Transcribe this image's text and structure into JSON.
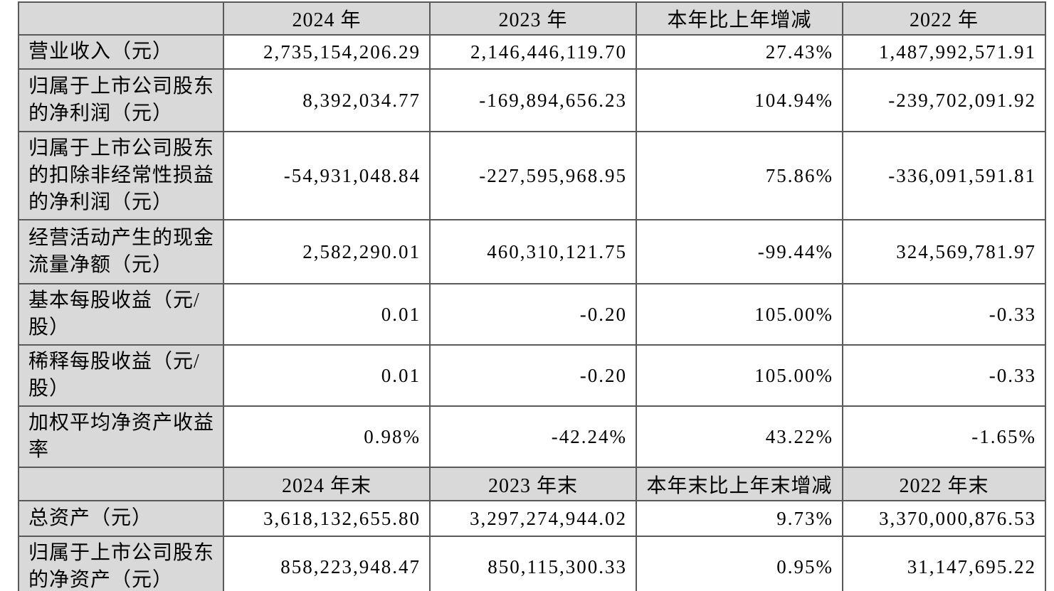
{
  "document": {
    "background_color": "#ffffff",
    "header_fill_color": "#d9d9d9",
    "border_color": "#595959",
    "text_color": "#000000"
  },
  "section1": {
    "header": [
      "",
      "2024 年",
      "2023 年",
      "本年比上年增减",
      "2022 年"
    ],
    "rows": [
      {
        "label": "营业收入（元）",
        "y2024": "2,735,154,206.29",
        "y2023": "2,146,446,119.70",
        "change": "27.43%",
        "y2022": "1,487,992,571.91"
      },
      {
        "label": "归属于上市公司股东的净利润（元）",
        "y2024": "8,392,034.77",
        "y2023": "-169,894,656.23",
        "change": "104.94%",
        "y2022": "-239,702,091.92"
      },
      {
        "label": "归属于上市公司股东的扣除非经常性损益的净利润（元）",
        "y2024": "-54,931,048.84",
        "y2023": "-227,595,968.95",
        "change": "75.86%",
        "y2022": "-336,091,591.81"
      },
      {
        "label": "经营活动产生的现金流量净额（元）",
        "y2024": "2,582,290.01",
        "y2023": "460,310,121.75",
        "change": "-99.44%",
        "y2022": "324,569,781.97"
      },
      {
        "label": "基本每股收益（元/股）",
        "y2024": "0.01",
        "y2023": "-0.20",
        "change": "105.00%",
        "y2022": "-0.33"
      },
      {
        "label": "稀释每股收益（元/股）",
        "y2024": "0.01",
        "y2023": "-0.20",
        "change": "105.00%",
        "y2022": "-0.33"
      },
      {
        "label": "加权平均净资产收益率",
        "y2024": "0.98%",
        "y2023": "-42.24%",
        "change": "43.22%",
        "y2022": "-1.65%"
      }
    ]
  },
  "section2": {
    "header": [
      "",
      "2024 年末",
      "2023 年末",
      "本年末比上年末增减",
      "2022 年末"
    ],
    "rows": [
      {
        "label": "总资产（元）",
        "y2024": "3,618,132,655.80",
        "y2023": "3,297,274,944.02",
        "change": "9.73%",
        "y2022": "3,370,000,876.53"
      },
      {
        "label": "归属于上市公司股东的净资产（元）",
        "y2024": "858,223,948.47",
        "y2023": "850,115,300.33",
        "change": "0.95%",
        "y2022": "31,147,695.22"
      }
    ]
  }
}
